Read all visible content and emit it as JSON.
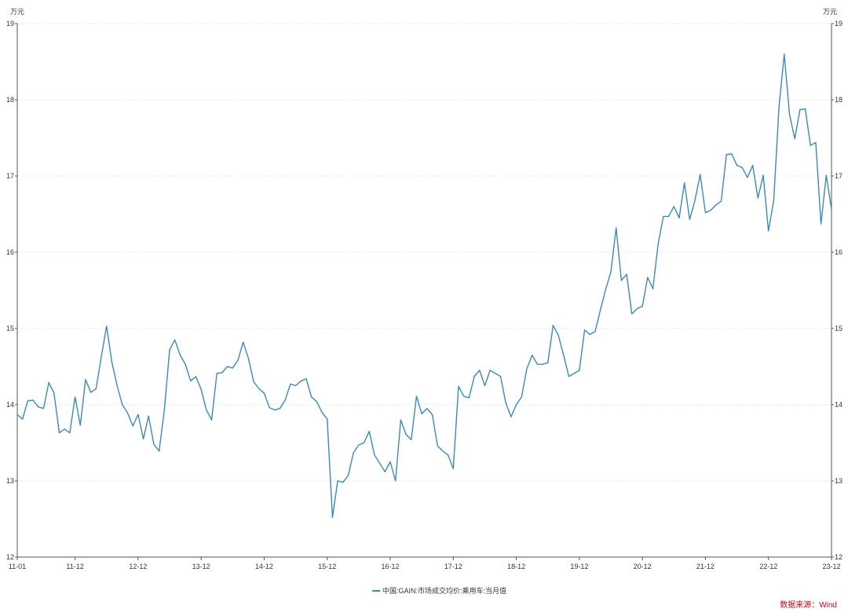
{
  "chart_data": {
    "type": "line",
    "y_unit_left": "万元",
    "y_unit_right": "万元",
    "ylim": [
      12,
      19
    ],
    "y_ticks": [
      12,
      13,
      14,
      15,
      16,
      17,
      18,
      19
    ],
    "x_tick_labels": [
      "11-01",
      "11-12",
      "12-12",
      "13-12",
      "14-12",
      "15-12",
      "16-12",
      "17-12",
      "18-12",
      "19-12",
      "20-12",
      "21-12",
      "22-12",
      "23-12"
    ],
    "x_tick_month_index": [
      0,
      11,
      23,
      35,
      47,
      59,
      71,
      83,
      95,
      107,
      119,
      131,
      143,
      155
    ],
    "grid": "horizontal-dotted",
    "legend_position": "bottom-center",
    "source": "数据来源：Wind",
    "series": [
      {
        "name": "中国:GAIN:市场成交均价:乘用车:当月值",
        "color": "#3a8bb5",
        "x_start": "2011-01",
        "values": [
          13.87,
          13.81,
          14.05,
          14.06,
          13.97,
          13.95,
          14.29,
          14.15,
          13.63,
          13.68,
          13.63,
          14.1,
          13.73,
          14.33,
          14.16,
          14.21,
          14.63,
          15.03,
          14.56,
          14.25,
          14.0,
          13.89,
          13.72,
          13.87,
          13.55,
          13.85,
          13.48,
          13.39,
          13.93,
          14.72,
          14.85,
          14.65,
          14.53,
          14.31,
          14.37,
          14.2,
          13.93,
          13.8,
          14.41,
          14.42,
          14.5,
          14.48,
          14.58,
          14.82,
          14.61,
          14.3,
          14.21,
          14.15,
          13.96,
          13.93,
          13.95,
          14.06,
          14.27,
          14.25,
          14.31,
          14.34,
          14.1,
          14.04,
          13.9,
          13.81,
          12.52,
          13.0,
          12.98,
          13.07,
          13.37,
          13.47,
          13.5,
          13.65,
          13.34,
          13.23,
          13.12,
          13.25,
          13.0,
          13.8,
          13.61,
          13.54,
          14.11,
          13.88,
          13.95,
          13.87,
          13.46,
          13.39,
          13.34,
          13.16,
          14.24,
          14.11,
          14.09,
          14.37,
          14.45,
          14.25,
          14.45,
          14.41,
          14.37,
          14.02,
          13.84,
          14.0,
          14.1,
          14.47,
          14.65,
          14.53,
          14.53,
          14.55,
          15.04,
          14.91,
          14.65,
          14.37,
          14.41,
          14.45,
          14.98,
          14.92,
          14.96,
          15.24,
          15.51,
          15.74,
          16.32,
          15.63,
          15.71,
          15.19,
          15.26,
          15.29,
          15.67,
          15.52,
          16.11,
          16.47,
          16.47,
          16.6,
          16.45,
          16.91,
          16.43,
          16.68,
          17.02,
          16.52,
          16.55,
          16.62,
          16.67,
          17.28,
          17.29,
          17.14,
          17.11,
          16.98,
          17.14,
          16.71,
          17.01,
          16.28,
          16.68,
          17.9,
          18.6,
          17.81,
          17.49,
          17.87,
          17.88,
          17.4,
          17.44,
          16.37,
          17.01,
          16.56
        ]
      }
    ]
  }
}
